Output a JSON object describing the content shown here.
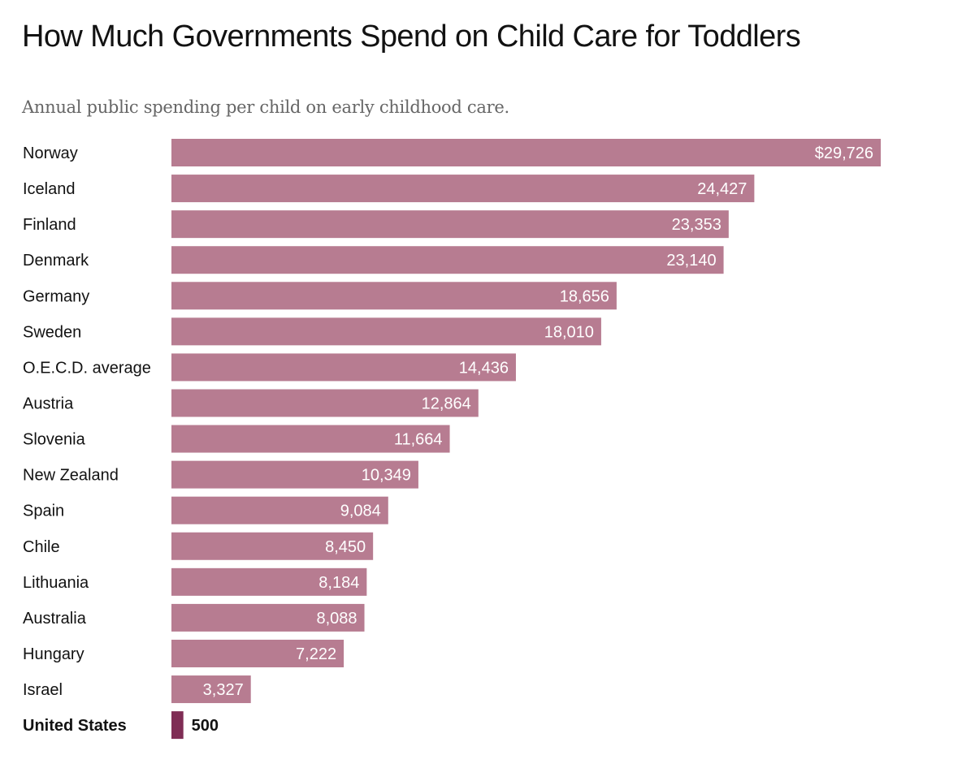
{
  "chart_data": {
    "type": "bar",
    "orientation": "horizontal",
    "title": "How Much Governments Spend on Child Care for Toddlers",
    "subtitle": "Annual public spending per child on early childhood care.",
    "categories": [
      "Norway",
      "Iceland",
      "Finland",
      "Denmark",
      "Germany",
      "Sweden",
      "O.E.C.D. average",
      "Austria",
      "Slovenia",
      "New Zealand",
      "Spain",
      "Chile",
      "Lithuania",
      "Australia",
      "Hungary",
      "Israel",
      "United States"
    ],
    "values": [
      29726,
      24427,
      23353,
      23140,
      18656,
      18010,
      14436,
      12864,
      11664,
      10349,
      9084,
      8450,
      8184,
      8088,
      7222,
      3327,
      500
    ],
    "value_labels": [
      "$29,726",
      "24,427",
      "23,353",
      "23,140",
      "18,656",
      "18,010",
      "14,436",
      "12,864",
      "11,664",
      "10,349",
      "9,084",
      "8,450",
      "8,184",
      "8,088",
      "7,222",
      "3,327",
      "500"
    ],
    "highlight": "United States",
    "colors": {
      "bar": "#b77c91",
      "highlight": "#7f2d55"
    },
    "grid": false
  }
}
